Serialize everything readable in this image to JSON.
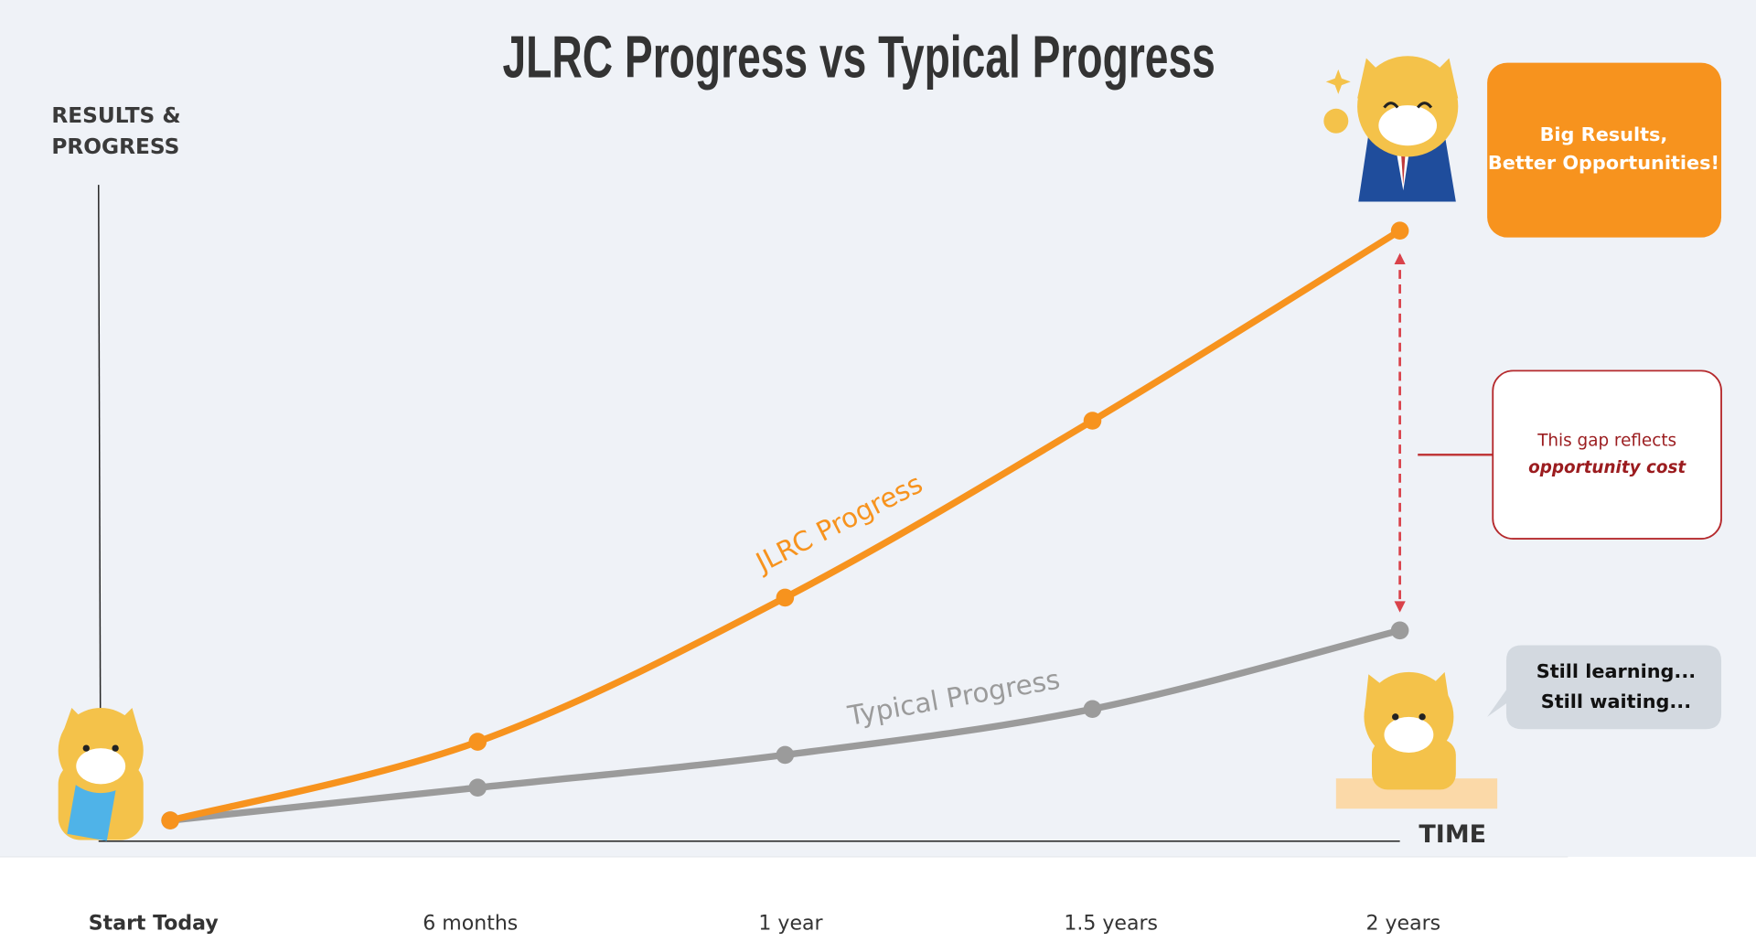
{
  "chart_data": {
    "type": "line",
    "title": "JLRC Progress vs Typical Progress",
    "y_label": [
      "RESULTS &",
      "PROGRESS"
    ],
    "x_label": "TIME",
    "categories": [
      "Start Today",
      "6 months",
      "1 year",
      "1.5 years",
      "2 years"
    ],
    "series": [
      {
        "name": "JLRC Progress",
        "color": "#f7931e",
        "values": [
          3,
          15,
          37,
          64,
          93
        ]
      },
      {
        "name": "Typical Progress",
        "color": "#9b9b9b",
        "values": [
          3,
          8,
          13,
          20,
          32
        ]
      }
    ],
    "ylim": [
      0,
      100
    ],
    "annotations": {
      "top": [
        "Big Results,",
        "Better Opportunities!"
      ],
      "gap": [
        "This gap reflects",
        "opportunity cost"
      ],
      "bottom": [
        "Still learning...",
        "Still waiting..."
      ]
    }
  }
}
